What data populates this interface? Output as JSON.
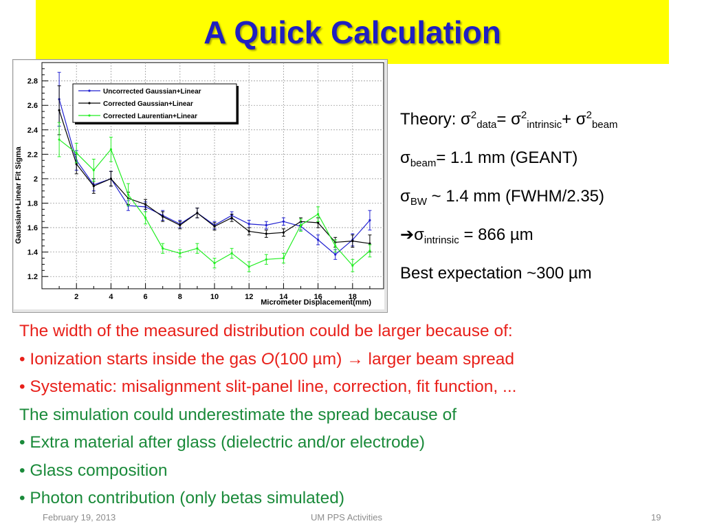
{
  "slide": {
    "title": "A Quick Calculation",
    "footer": {
      "date": "February 19, 2013",
      "center": "UM PPS Activities",
      "page": "19"
    }
  },
  "theory": {
    "line1": {
      "prefix": "Theory: σ",
      "sup1": "2",
      "sub1": "data",
      "mid1": "= σ",
      "sup2": "2",
      "sub2": "intrinsic",
      "mid2": "+ σ",
      "sup3": "2",
      "sub3": "beam"
    },
    "line2": {
      "sym": "σ",
      "sub": "beam",
      "rest": "= 1.1 mm (GEANT)"
    },
    "line3": {
      "sym": "σ",
      "sub": "BW",
      "rest": " ~ 1.4 mm (FWHM/2.35)"
    },
    "line4": {
      "arrow": "➔",
      "sym": "σ",
      "sub": "intrinsic",
      "rest": " = 866 µm"
    },
    "line5": "Best expectation ~300 µm"
  },
  "body": {
    "red_intro": "The width of the measured distribution could be larger because of:",
    "red_b1_pre": "• Ionization starts inside the gas ",
    "red_b1_o": "O",
    "red_b1_mid": "(100 µm) ",
    "red_b1_arrow": "→",
    "red_b1_post": " larger beam spread",
    "red_b2": "• Systematic: misalignment slit-panel line, correction, fit function, ...",
    "green_intro": "The simulation could underestimate the spread because of",
    "green_b1": "• Extra material after glass (dielectric and/or electrode)",
    "green_b2": "• Glass composition",
    "green_b3": "• Photon contribution (only betas simulated)"
  },
  "colors": {
    "title_bg": "#ffff00",
    "title_text": "#1f1fc0",
    "red_text": "#e8201a",
    "green_text": "#1a8a3a",
    "series_uncorrected_gaussian": "#1f1fd0",
    "series_corrected_gaussian": "#000000",
    "series_corrected_laurentian": "#22ee22"
  },
  "chart_data": {
    "type": "line",
    "title": "",
    "xlabel": "Micrometer Displacement(mm)",
    "ylabel": "Gaussian+Linear Fit Sigma",
    "xlim": [
      0,
      19.8
    ],
    "ylim": [
      1.1,
      2.95
    ],
    "xticks": [
      2,
      4,
      6,
      8,
      10,
      12,
      14,
      16,
      18
    ],
    "yticks": [
      1.2,
      1.4,
      1.6,
      1.8,
      2,
      2.2,
      2.4,
      2.6,
      2.8
    ],
    "grid": true,
    "legend_position": "top-left",
    "x": [
      1,
      2,
      3,
      4,
      5,
      6,
      7,
      8,
      9,
      10,
      11,
      12,
      13,
      14,
      15,
      16,
      17,
      18,
      19
    ],
    "series": [
      {
        "name": "Uncorrected Gaussian+Linear",
        "color": "#1f1fd0",
        "values": [
          2.65,
          2.15,
          1.95,
          2.0,
          1.78,
          1.77,
          1.7,
          1.63,
          1.72,
          1.62,
          1.7,
          1.63,
          1.62,
          1.65,
          1.61,
          1.5,
          1.38,
          1.5,
          1.66
        ],
        "errors": [
          0.22,
          0.08,
          0.05,
          0.06,
          0.04,
          0.04,
          0.04,
          0.03,
          0.04,
          0.03,
          0.03,
          0.03,
          0.03,
          0.03,
          0.03,
          0.04,
          0.04,
          0.05,
          0.08
        ]
      },
      {
        "name": "Corrected Gaussian+Linear",
        "color": "#000000",
        "values": [
          2.56,
          2.12,
          1.94,
          2.0,
          1.84,
          1.79,
          1.69,
          1.62,
          1.72,
          1.61,
          1.68,
          1.57,
          1.55,
          1.56,
          1.65,
          1.64,
          1.48,
          1.49,
          1.47
        ],
        "errors": [
          0.2,
          0.08,
          0.06,
          0.06,
          0.05,
          0.04,
          0.04,
          0.03,
          0.04,
          0.03,
          0.03,
          0.03,
          0.03,
          0.03,
          0.03,
          0.04,
          0.04,
          0.05,
          0.07
        ]
      },
      {
        "name": "Corrected Laurentian+Linear",
        "color": "#22ee22",
        "values": [
          2.32,
          2.21,
          2.07,
          2.24,
          1.87,
          1.68,
          1.43,
          1.39,
          1.43,
          1.31,
          1.39,
          1.28,
          1.34,
          1.35,
          1.62,
          1.71,
          1.45,
          1.29,
          1.41
        ],
        "errors": [
          0.14,
          0.08,
          0.09,
          0.1,
          0.09,
          0.05,
          0.04,
          0.03,
          0.04,
          0.04,
          0.04,
          0.04,
          0.04,
          0.04,
          0.05,
          0.06,
          0.05,
          0.05,
          0.05
        ]
      }
    ]
  }
}
